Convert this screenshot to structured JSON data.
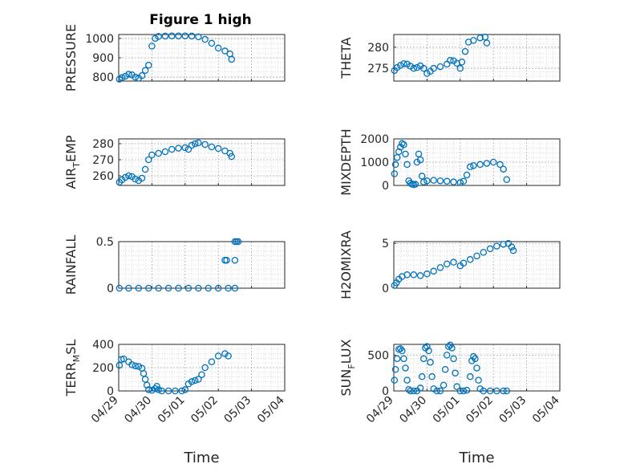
{
  "figure_title": "Figure 1 high",
  "marker_color": "#0072BD",
  "grid": true,
  "chart_data": [
    {
      "type": "scatter",
      "title": "Figure 1 high",
      "ylabel": "PRESSURE",
      "ylim": [
        780,
        1020
      ],
      "yticks": [
        800,
        900,
        1000
      ],
      "xlim": [
        0,
        5
      ],
      "xticks": [
        0,
        1,
        2,
        3,
        4,
        5
      ],
      "show_xticklabels": false,
      "points": [
        [
          0.02,
          790
        ],
        [
          0.1,
          798
        ],
        [
          0.2,
          805
        ],
        [
          0.3,
          815
        ],
        [
          0.4,
          812
        ],
        [
          0.5,
          800
        ],
        [
          0.6,
          795
        ],
        [
          0.7,
          808
        ],
        [
          0.8,
          835
        ],
        [
          0.9,
          862
        ],
        [
          1.0,
          960
        ],
        [
          1.1,
          1000
        ],
        [
          1.2,
          1010
        ],
        [
          1.4,
          1012
        ],
        [
          1.6,
          1013
        ],
        [
          1.8,
          1013
        ],
        [
          2.0,
          1013
        ],
        [
          2.2,
          1012
        ],
        [
          2.4,
          1008
        ],
        [
          2.6,
          995
        ],
        [
          2.8,
          975
        ],
        [
          3.0,
          950
        ],
        [
          3.2,
          935
        ],
        [
          3.35,
          920
        ],
        [
          3.4,
          892
        ]
      ]
    },
    {
      "type": "scatter",
      "ylabel": "THETA",
      "ylim": [
        272,
        283
      ],
      "yticks": [
        275,
        280
      ],
      "xlim": [
        0,
        5
      ],
      "xticks": [
        0,
        1,
        2,
        3,
        4,
        5
      ],
      "show_xticklabels": false,
      "points": [
        [
          0.02,
          274.5
        ],
        [
          0.1,
          275.2
        ],
        [
          0.2,
          275.7
        ],
        [
          0.3,
          276.1
        ],
        [
          0.4,
          276.0
        ],
        [
          0.5,
          275.5
        ],
        [
          0.6,
          275.0
        ],
        [
          0.7,
          275.2
        ],
        [
          0.8,
          275.6
        ],
        [
          0.9,
          275.0
        ],
        [
          1.0,
          273.8
        ],
        [
          1.1,
          274.3
        ],
        [
          1.2,
          275.0
        ],
        [
          1.4,
          275.4
        ],
        [
          1.6,
          276.0
        ],
        [
          1.7,
          276.9
        ],
        [
          1.8,
          276.8
        ],
        [
          1.9,
          276.2
        ],
        [
          2.0,
          275.0
        ],
        [
          2.05,
          276.5
        ],
        [
          2.15,
          279.0
        ],
        [
          2.25,
          281.2
        ],
        [
          2.4,
          281.6
        ],
        [
          2.6,
          282.2
        ],
        [
          2.75,
          282.4
        ],
        [
          2.8,
          281.0
        ]
      ]
    },
    {
      "type": "scatter",
      "ylabel": "AIR_TEMP",
      "ylim": [
        254,
        283
      ],
      "yticks": [
        260,
        270,
        280
      ],
      "xlim": [
        0,
        5
      ],
      "xticks": [
        0,
        1,
        2,
        3,
        4,
        5
      ],
      "show_xticklabels": false,
      "points": [
        [
          0.02,
          256
        ],
        [
          0.1,
          257.5
        ],
        [
          0.2,
          259
        ],
        [
          0.3,
          260
        ],
        [
          0.4,
          259.5
        ],
        [
          0.5,
          258
        ],
        [
          0.6,
          257
        ],
        [
          0.7,
          258.5
        ],
        [
          0.8,
          264
        ],
        [
          0.9,
          270
        ],
        [
          1.0,
          273
        ],
        [
          1.2,
          274
        ],
        [
          1.4,
          275
        ],
        [
          1.6,
          276.5
        ],
        [
          1.8,
          277.2
        ],
        [
          2.0,
          277.5
        ],
        [
          2.1,
          276.5
        ],
        [
          2.2,
          279
        ],
        [
          2.3,
          280
        ],
        [
          2.4,
          280.5
        ],
        [
          2.6,
          279.5
        ],
        [
          2.8,
          278
        ],
        [
          3.0,
          277
        ],
        [
          3.2,
          275.5
        ],
        [
          3.35,
          274
        ],
        [
          3.4,
          272
        ]
      ]
    },
    {
      "type": "scatter",
      "ylabel": "MIXDEPTH",
      "ylim": [
        0,
        2000
      ],
      "yticks": [
        0,
        1000,
        2000
      ],
      "xlim": [
        0,
        5
      ],
      "xticks": [
        0,
        1,
        2,
        3,
        4,
        5
      ],
      "show_xticklabels": false,
      "points": [
        [
          0.02,
          500
        ],
        [
          0.05,
          900
        ],
        [
          0.1,
          1200
        ],
        [
          0.15,
          1450
        ],
        [
          0.2,
          1650
        ],
        [
          0.25,
          1800
        ],
        [
          0.3,
          1750
        ],
        [
          0.35,
          1350
        ],
        [
          0.4,
          900
        ],
        [
          0.45,
          200
        ],
        [
          0.5,
          100
        ],
        [
          0.55,
          50
        ],
        [
          0.6,
          30
        ],
        [
          0.65,
          50
        ],
        [
          0.7,
          1000
        ],
        [
          0.75,
          1350
        ],
        [
          0.8,
          1100
        ],
        [
          0.85,
          400
        ],
        [
          0.9,
          150
        ],
        [
          1.0,
          200
        ],
        [
          1.2,
          220
        ],
        [
          1.4,
          200
        ],
        [
          1.6,
          180
        ],
        [
          1.8,
          150
        ],
        [
          2.0,
          120
        ],
        [
          2.1,
          180
        ],
        [
          2.2,
          450
        ],
        [
          2.3,
          800
        ],
        [
          2.4,
          850
        ],
        [
          2.6,
          900
        ],
        [
          2.8,
          950
        ],
        [
          3.0,
          1000
        ],
        [
          3.2,
          900
        ],
        [
          3.3,
          700
        ],
        [
          3.4,
          250
        ]
      ]
    },
    {
      "type": "scatter",
      "ylabel": "RAINFALL",
      "ylim": [
        0,
        0.5
      ],
      "yticks": [
        0,
        0.5
      ],
      "xlim": [
        0,
        5
      ],
      "xticks": [
        0,
        1,
        2,
        3,
        4,
        5
      ],
      "show_xticklabels": false,
      "points": [
        [
          0.02,
          0
        ],
        [
          0.3,
          0
        ],
        [
          0.6,
          0
        ],
        [
          0.9,
          0
        ],
        [
          1.2,
          0
        ],
        [
          1.5,
          0
        ],
        [
          1.8,
          0
        ],
        [
          2.1,
          0
        ],
        [
          2.4,
          0
        ],
        [
          2.7,
          0
        ],
        [
          3.0,
          0
        ],
        [
          3.3,
          0
        ],
        [
          3.5,
          0
        ],
        [
          3.2,
          0.3
        ],
        [
          3.25,
          0.3
        ],
        [
          3.5,
          0.3
        ],
        [
          3.5,
          0.5
        ],
        [
          3.55,
          0.5
        ],
        [
          3.6,
          0.5
        ]
      ]
    },
    {
      "type": "scatter",
      "ylabel": "H2OMIXRA",
      "ylim": [
        0,
        5.2
      ],
      "yticks": [
        0,
        5
      ],
      "xlim": [
        0,
        5
      ],
      "xticks": [
        0,
        1,
        2,
        3,
        4,
        5
      ],
      "show_xticklabels": false,
      "points": [
        [
          0.02,
          0.3
        ],
        [
          0.08,
          0.6
        ],
        [
          0.15,
          1.0
        ],
        [
          0.25,
          1.3
        ],
        [
          0.4,
          1.5
        ],
        [
          0.6,
          1.5
        ],
        [
          0.8,
          1.4
        ],
        [
          1.0,
          1.6
        ],
        [
          1.2,
          1.9
        ],
        [
          1.4,
          2.3
        ],
        [
          1.6,
          2.7
        ],
        [
          1.8,
          2.9
        ],
        [
          2.0,
          2.5
        ],
        [
          2.1,
          2.8
        ],
        [
          2.3,
          3.2
        ],
        [
          2.5,
          3.6
        ],
        [
          2.7,
          4.0
        ],
        [
          2.9,
          4.4
        ],
        [
          3.1,
          4.7
        ],
        [
          3.3,
          4.9
        ],
        [
          3.45,
          5.0
        ],
        [
          3.55,
          4.6
        ],
        [
          3.6,
          4.2
        ]
      ]
    },
    {
      "type": "scatter",
      "ylabel": "TERR_MSL",
      "ylim": [
        0,
        400
      ],
      "yticks": [
        0,
        200,
        400
      ],
      "xlim": [
        0,
        5
      ],
      "xticks": [
        0,
        1,
        2,
        3,
        4,
        5
      ],
      "show_xticklabels": [
        "04/29",
        "04/30",
        "05/01",
        "05/02",
        "05/03",
        "05/04"
      ],
      "xlabel": "Time",
      "points": [
        [
          0.02,
          220
        ],
        [
          0.08,
          270
        ],
        [
          0.15,
          275
        ],
        [
          0.3,
          250
        ],
        [
          0.4,
          225
        ],
        [
          0.5,
          215
        ],
        [
          0.6,
          210
        ],
        [
          0.7,
          195
        ],
        [
          0.75,
          150
        ],
        [
          0.8,
          100
        ],
        [
          0.85,
          50
        ],
        [
          0.9,
          10
        ],
        [
          1.0,
          5
        ],
        [
          1.1,
          20
        ],
        [
          1.15,
          40
        ],
        [
          1.2,
          10
        ],
        [
          1.3,
          0
        ],
        [
          1.5,
          0
        ],
        [
          1.7,
          0
        ],
        [
          1.9,
          0
        ],
        [
          2.0,
          10
        ],
        [
          2.1,
          60
        ],
        [
          2.2,
          80
        ],
        [
          2.3,
          90
        ],
        [
          2.4,
          100
        ],
        [
          2.5,
          140
        ],
        [
          2.6,
          200
        ],
        [
          2.8,
          250
        ],
        [
          3.0,
          300
        ],
        [
          3.2,
          320
        ],
        [
          3.3,
          300
        ]
      ]
    },
    {
      "type": "scatter",
      "ylabel": "SUN_FLUX",
      "ylim": [
        0,
        650
      ],
      "yticks": [
        0,
        500
      ],
      "xlim": [
        0,
        5
      ],
      "xticks": [
        0,
        1,
        2,
        3,
        4,
        5
      ],
      "show_xticklabels": [
        "04/29",
        "04/30",
        "05/01",
        "05/02",
        "05/03",
        "05/04"
      ],
      "xlabel": "Time",
      "points": [
        [
          0.02,
          150
        ],
        [
          0.05,
          300
        ],
        [
          0.1,
          450
        ],
        [
          0.15,
          580
        ],
        [
          0.2,
          590
        ],
        [
          0.25,
          560
        ],
        [
          0.3,
          450
        ],
        [
          0.35,
          320
        ],
        [
          0.4,
          150
        ],
        [
          0.45,
          20
        ],
        [
          0.5,
          0
        ],
        [
          0.6,
          0
        ],
        [
          0.7,
          0
        ],
        [
          0.8,
          40
        ],
        [
          0.85,
          200
        ],
        [
          0.9,
          450
        ],
        [
          0.95,
          600
        ],
        [
          1.0,
          620
        ],
        [
          1.05,
          560
        ],
        [
          1.1,
          400
        ],
        [
          1.15,
          200
        ],
        [
          1.2,
          30
        ],
        [
          1.3,
          0
        ],
        [
          1.4,
          0
        ],
        [
          1.5,
          80
        ],
        [
          1.55,
          300
        ],
        [
          1.6,
          500
        ],
        [
          1.65,
          620
        ],
        [
          1.7,
          640
        ],
        [
          1.75,
          600
        ],
        [
          1.8,
          450
        ],
        [
          1.85,
          250
        ],
        [
          1.9,
          60
        ],
        [
          2.0,
          0
        ],
        [
          2.1,
          0
        ],
        [
          2.2,
          10
        ],
        [
          2.3,
          200
        ],
        [
          2.35,
          420
        ],
        [
          2.4,
          480
        ],
        [
          2.45,
          450
        ],
        [
          2.5,
          320
        ],
        [
          2.55,
          150
        ],
        [
          2.6,
          30
        ],
        [
          2.7,
          0
        ],
        [
          2.9,
          0
        ],
        [
          3.1,
          0
        ],
        [
          3.3,
          0
        ],
        [
          3.4,
          0
        ]
      ]
    }
  ],
  "x_axis_title": "Time"
}
